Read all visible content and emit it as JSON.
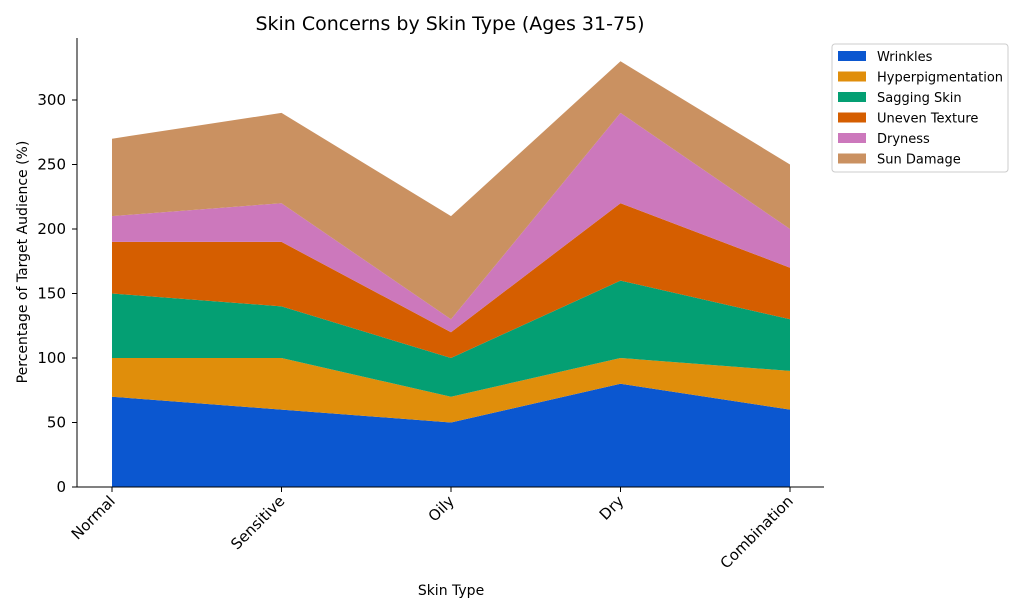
{
  "chart_data": {
    "type": "area",
    "stacked": true,
    "title": "Skin Concerns by Skin Type (Ages 31-75)",
    "xlabel": "Skin Type",
    "ylabel": "Percentage of Target Audience (%)",
    "categories": [
      "Normal",
      "Sensitive",
      "Oily",
      "Dry",
      "Combination"
    ],
    "ylim": [
      0,
      340
    ],
    "yticks": [
      0,
      50,
      100,
      150,
      200,
      250,
      300
    ],
    "grid": false,
    "legend_position": "top-right",
    "series": [
      {
        "name": "Wrinkles",
        "color": "#0b57d0",
        "values": [
          70,
          60,
          50,
          80,
          60
        ]
      },
      {
        "name": "Hyperpigmentation",
        "color": "#e08e0b",
        "values": [
          30,
          40,
          20,
          20,
          30
        ]
      },
      {
        "name": "Sagging Skin",
        "color": "#049f73",
        "values": [
          50,
          40,
          30,
          60,
          40
        ]
      },
      {
        "name": "Uneven Texture",
        "color": "#d55e00",
        "values": [
          40,
          50,
          20,
          60,
          40
        ]
      },
      {
        "name": "Dryness",
        "color": "#cc78bc",
        "values": [
          20,
          30,
          10,
          70,
          30
        ]
      },
      {
        "name": "Sun Damage",
        "color": "#ca9161",
        "values": [
          60,
          70,
          80,
          40,
          50
        ]
      }
    ]
  }
}
